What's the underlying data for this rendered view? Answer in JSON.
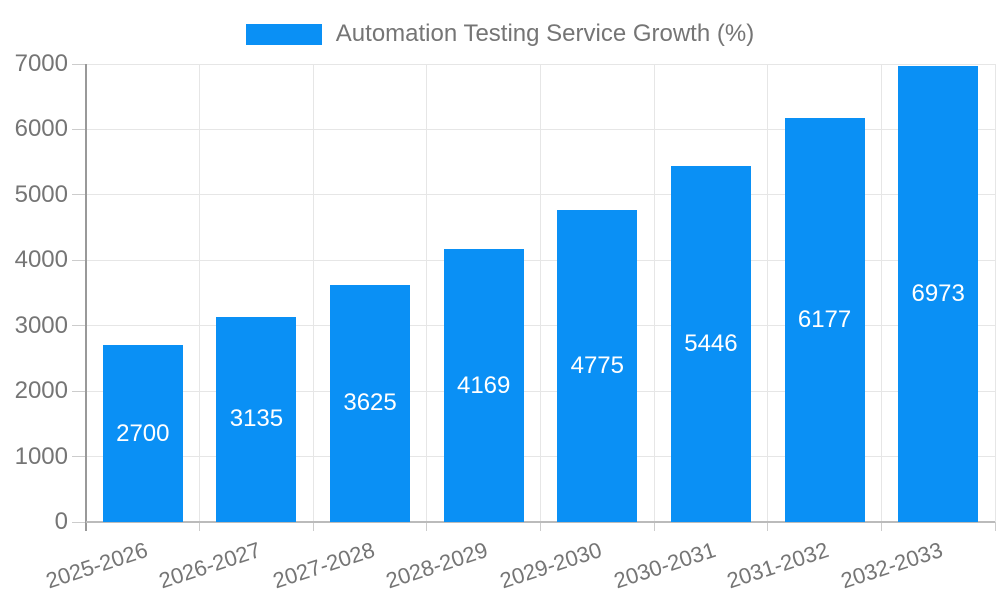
{
  "chart_data": {
    "type": "bar",
    "title": "Automation Testing Service Growth (%)",
    "categories": [
      "2025-2026",
      "2026-2027",
      "2027-2028",
      "2028-2029",
      "2029-2030",
      "2030-2031",
      "2031-2032",
      "2032-2033"
    ],
    "series": [
      {
        "name": "Automation Testing Service Growth (%)",
        "values": [
          2700,
          3135,
          3625,
          4169,
          4775,
          5446,
          6177,
          6973
        ]
      }
    ],
    "xlabel": "",
    "ylabel": "",
    "ylim": [
      0,
      7000
    ],
    "yticks": [
      0,
      1000,
      2000,
      3000,
      4000,
      5000,
      6000,
      7000
    ],
    "grid": true,
    "legend_position": "top-center",
    "value_labels": "inside-middle",
    "x_tick_label_rotation_deg": -18
  },
  "legend": {
    "label": "Automation Testing Service Growth (%)"
  },
  "colors": {
    "bar": "#0a90f5",
    "grid": "#e6e6e6",
    "axis_y": "#999999",
    "axis_x": "#bbbbbb",
    "tick": "#cccccc",
    "text": "#757575",
    "value_text": "#ffffff",
    "background": "#ffffff"
  }
}
